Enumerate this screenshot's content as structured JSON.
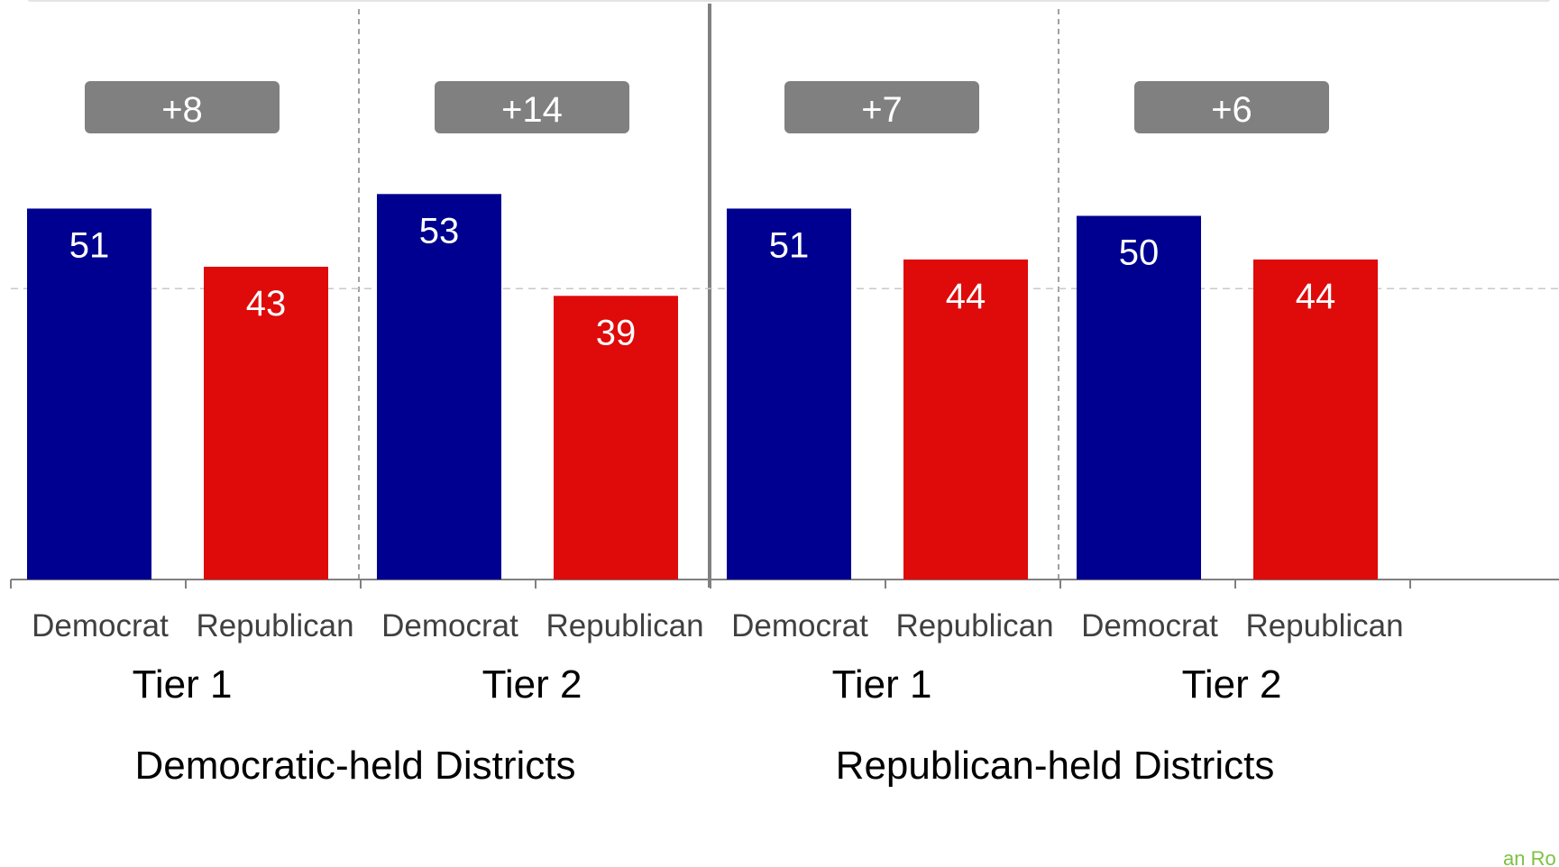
{
  "chart_data": {
    "type": "bar",
    "panels": [
      {
        "title": "Democratic-held Districts",
        "tiers": [
          {
            "name": "Tier 1",
            "margin": "+8",
            "bars": [
              {
                "category": "Democrat",
                "value": 51
              },
              {
                "category": "Republican",
                "value": 43
              }
            ]
          },
          {
            "name": "Tier 2",
            "margin": "+14",
            "bars": [
              {
                "category": "Democrat",
                "value": 53
              },
              {
                "category": "Republican",
                "value": 39
              }
            ]
          }
        ]
      },
      {
        "title": "Republican-held Districts",
        "tiers": [
          {
            "name": "Tier 1",
            "margin": "+7",
            "bars": [
              {
                "category": "Democrat",
                "value": 51
              },
              {
                "category": "Republican",
                "value": 44
              }
            ]
          },
          {
            "name": "Tier 2",
            "margin": "+6",
            "bars": [
              {
                "category": "Democrat",
                "value": 50
              },
              {
                "category": "Republican",
                "value": 44
              }
            ]
          }
        ]
      }
    ],
    "ylim": [
      0,
      100
    ],
    "reference_line": 40,
    "grid": false,
    "colors": {
      "Democrat": "#000090",
      "Republican": "#df0a0a",
      "margin_box": "#808080"
    }
  },
  "footer": {
    "text": "an Ro"
  }
}
